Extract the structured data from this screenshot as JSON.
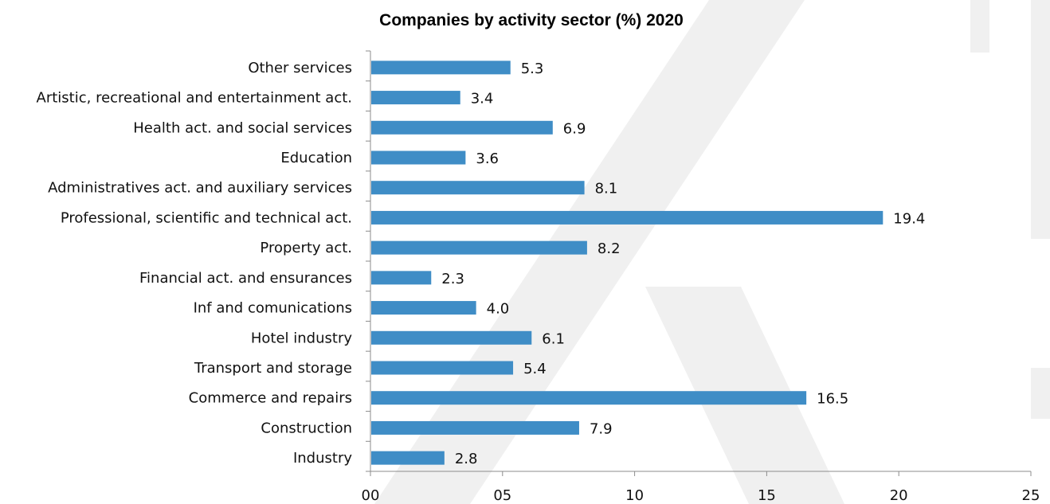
{
  "chart_data": {
    "type": "bar",
    "orientation": "horizontal",
    "title": "Companies by activity sector (%) 2020",
    "xlabel": "",
    "ylabel": "",
    "xlim": [
      0,
      25
    ],
    "x_ticks": [
      0,
      5,
      10,
      15,
      20,
      25
    ],
    "x_tick_labels": [
      "00",
      "05",
      "10",
      "15",
      "20",
      "25"
    ],
    "grid": false,
    "legend": "none",
    "bar_color": "#3f8dc6",
    "categories": [
      "Other services",
      "Artistic, recreational and entertainment act.",
      "Health act. and social services",
      "Education",
      "Administratives act. and auxiliary services",
      "Professional, scientific and technical act.",
      "Property act.",
      "Financial act. and ensurances",
      "Inf and comunications",
      "Hotel industry",
      "Transport and storage",
      "Commerce and repairs",
      "Construction",
      "Industry"
    ],
    "values": [
      5.3,
      3.4,
      6.9,
      3.6,
      8.1,
      19.4,
      8.2,
      2.3,
      4.0,
      6.1,
      5.4,
      16.5,
      7.9,
      2.8
    ],
    "value_labels": [
      "5.3",
      "3.4",
      "6.9",
      "3.6",
      "8.1",
      "19.4",
      "8.2",
      "2.3",
      "4.0",
      "6.1",
      "5.4",
      "16.5",
      "7.9",
      "2.8"
    ]
  },
  "watermark_color": "#f0f0f0"
}
